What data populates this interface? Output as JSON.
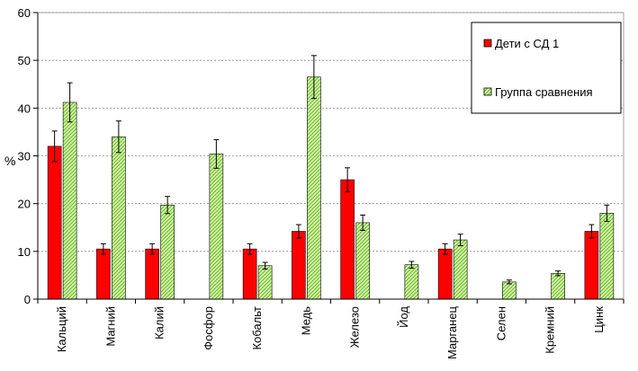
{
  "chart_data": {
    "type": "bar",
    "ylabel": "%",
    "ylim": [
      0,
      60
    ],
    "yticks": [
      0,
      10,
      20,
      30,
      40,
      50,
      60
    ],
    "grid": true,
    "legend_position": "top-right",
    "categories": [
      "Кальций",
      "Магний",
      "Калий",
      "Фосфор",
      "Кобальт",
      "Медь",
      "Железо",
      "Йод",
      "Марганец",
      "Селен",
      "Кремний",
      "Цинк"
    ],
    "series": [
      {
        "name": "Дети с СД 1",
        "color": "#ff0000",
        "pattern": "solid",
        "values": [
          32,
          10.5,
          10.5,
          0,
          10.5,
          14.2,
          25,
          0,
          10.5,
          0,
          0,
          14.2
        ],
        "errors": [
          3.2,
          1.1,
          1.1,
          0,
          1.1,
          1.4,
          2.5,
          0,
          1.1,
          0,
          0,
          1.4
        ]
      },
      {
        "name": "Группа сравнения",
        "color": "#ccff99",
        "pattern": "hatched",
        "values": [
          41.2,
          34,
          19.7,
          30.4,
          7,
          46.5,
          16,
          7.2,
          12.4,
          3.6,
          5.4,
          18
        ],
        "errors": [
          4.1,
          3.3,
          1.8,
          3,
          0.7,
          4.5,
          1.6,
          0.7,
          1.2,
          0.4,
          0.5,
          1.7
        ]
      }
    ]
  }
}
